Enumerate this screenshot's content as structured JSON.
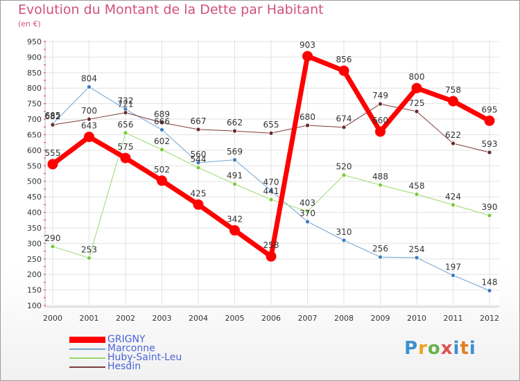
{
  "title": "Evolution du Montant de la Dette par Habitant",
  "subtitle": "(en €)",
  "logo": "Proxiti",
  "chart_data": {
    "type": "line",
    "title": "Evolution du Montant de la Dette par Habitant",
    "ylabel": "(en €)",
    "xlabel": "",
    "x": [
      "2000",
      "2001",
      "2002",
      "2003",
      "2004",
      "2005",
      "2006",
      "2007",
      "2008",
      "2009",
      "2010",
      "2011",
      "2012"
    ],
    "ylim": [
      100,
      950
    ],
    "yticks": [
      100,
      150,
      200,
      250,
      300,
      350,
      400,
      450,
      500,
      550,
      600,
      650,
      700,
      750,
      800,
      850,
      900,
      950
    ],
    "grid": true,
    "legend_position": "bottom-left",
    "series": [
      {
        "name": "Marconne",
        "color": "#6fa0d0",
        "marker": "#3a7cc0",
        "width": 1,
        "values": [
          685,
          804,
          732,
          666,
          560,
          569,
          470,
          370,
          310,
          256,
          254,
          197,
          148
        ],
        "labels": [
          "685",
          "804",
          "732",
          "666",
          "560",
          "569",
          "470",
          "370",
          "310",
          "256",
          "254",
          "197",
          "148"
        ]
      },
      {
        "name": "Huby-Saint-Leu",
        "color": "#9ad86a",
        "marker": "#7acc3a",
        "width": 1,
        "values": [
          290,
          253,
          656,
          602,
          544,
          491,
          441,
          403,
          520,
          488,
          458,
          424,
          390
        ],
        "labels": [
          "290",
          "253",
          "656",
          "602",
          "544",
          "491",
          "441",
          "403",
          "520",
          "488",
          "458",
          "424",
          "390"
        ]
      },
      {
        "name": "Hesdin",
        "color": "#7a3a3a",
        "marker": "#6a2a2a",
        "width": 1,
        "values": [
          682,
          700,
          721,
          689,
          667,
          662,
          655,
          680,
          674,
          749,
          725,
          622,
          593
        ],
        "labels": [
          "682",
          "700",
          "721",
          "689",
          "667",
          "662",
          "655",
          "680",
          "674",
          "749",
          "725",
          "622",
          "593"
        ]
      },
      {
        "name": "GRIGNY",
        "color": "#ff0000",
        "marker": "#ff0000",
        "width": 7,
        "values": [
          555,
          643,
          575,
          502,
          425,
          342,
          258,
          903,
          856,
          660,
          800,
          758,
          695
        ],
        "labels": [
          "555",
          "643",
          "575",
          "502",
          "425",
          "342",
          "258",
          "903",
          "856",
          "660",
          "800",
          "758",
          "695"
        ]
      }
    ]
  }
}
